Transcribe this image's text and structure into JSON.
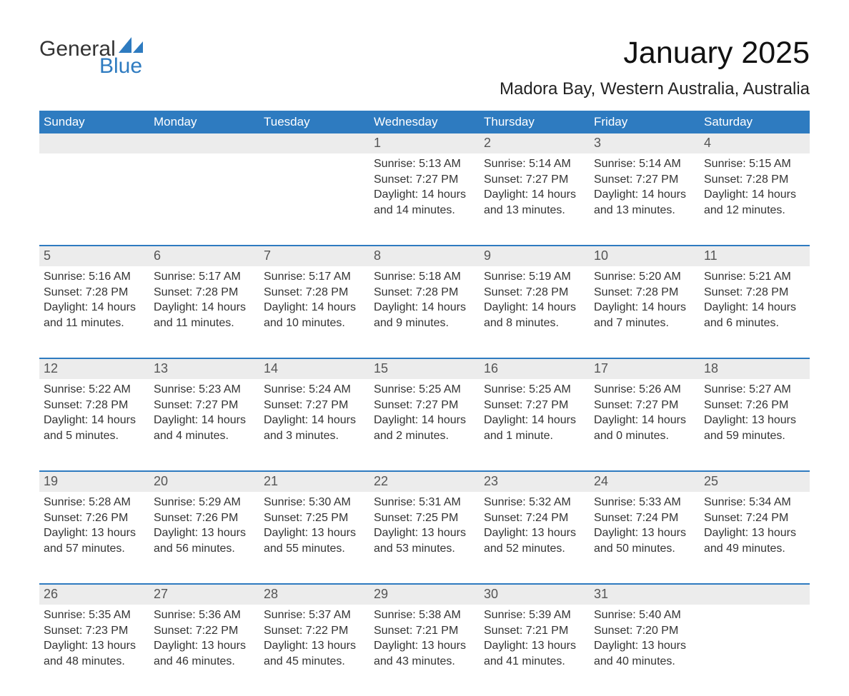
{
  "logo": {
    "word1": "General",
    "word2": "Blue",
    "sail_color": "#2e7bc0",
    "text_color": "#333333"
  },
  "title": "January 2025",
  "location": "Madora Bay, Western Australia, Australia",
  "calendar": {
    "header_bg": "#2e7bc0",
    "header_text_color": "#ffffff",
    "week_divider_color": "#2e7bc0",
    "daynum_bg": "#ececec",
    "columns": [
      "Sunday",
      "Monday",
      "Tuesday",
      "Wednesday",
      "Thursday",
      "Friday",
      "Saturday"
    ],
    "weeks": [
      [
        null,
        null,
        null,
        {
          "day": "1",
          "sunrise": "5:13 AM",
          "sunset": "7:27 PM",
          "daylight": "14 hours and 14 minutes."
        },
        {
          "day": "2",
          "sunrise": "5:14 AM",
          "sunset": "7:27 PM",
          "daylight": "14 hours and 13 minutes."
        },
        {
          "day": "3",
          "sunrise": "5:14 AM",
          "sunset": "7:27 PM",
          "daylight": "14 hours and 13 minutes."
        },
        {
          "day": "4",
          "sunrise": "5:15 AM",
          "sunset": "7:28 PM",
          "daylight": "14 hours and 12 minutes."
        }
      ],
      [
        {
          "day": "5",
          "sunrise": "5:16 AM",
          "sunset": "7:28 PM",
          "daylight": "14 hours and 11 minutes."
        },
        {
          "day": "6",
          "sunrise": "5:17 AM",
          "sunset": "7:28 PM",
          "daylight": "14 hours and 11 minutes."
        },
        {
          "day": "7",
          "sunrise": "5:17 AM",
          "sunset": "7:28 PM",
          "daylight": "14 hours and 10 minutes."
        },
        {
          "day": "8",
          "sunrise": "5:18 AM",
          "sunset": "7:28 PM",
          "daylight": "14 hours and 9 minutes."
        },
        {
          "day": "9",
          "sunrise": "5:19 AM",
          "sunset": "7:28 PM",
          "daylight": "14 hours and 8 minutes."
        },
        {
          "day": "10",
          "sunrise": "5:20 AM",
          "sunset": "7:28 PM",
          "daylight": "14 hours and 7 minutes."
        },
        {
          "day": "11",
          "sunrise": "5:21 AM",
          "sunset": "7:28 PM",
          "daylight": "14 hours and 6 minutes."
        }
      ],
      [
        {
          "day": "12",
          "sunrise": "5:22 AM",
          "sunset": "7:28 PM",
          "daylight": "14 hours and 5 minutes."
        },
        {
          "day": "13",
          "sunrise": "5:23 AM",
          "sunset": "7:27 PM",
          "daylight": "14 hours and 4 minutes."
        },
        {
          "day": "14",
          "sunrise": "5:24 AM",
          "sunset": "7:27 PM",
          "daylight": "14 hours and 3 minutes."
        },
        {
          "day": "15",
          "sunrise": "5:25 AM",
          "sunset": "7:27 PM",
          "daylight": "14 hours and 2 minutes."
        },
        {
          "day": "16",
          "sunrise": "5:25 AM",
          "sunset": "7:27 PM",
          "daylight": "14 hours and 1 minute."
        },
        {
          "day": "17",
          "sunrise": "5:26 AM",
          "sunset": "7:27 PM",
          "daylight": "14 hours and 0 minutes."
        },
        {
          "day": "18",
          "sunrise": "5:27 AM",
          "sunset": "7:26 PM",
          "daylight": "13 hours and 59 minutes."
        }
      ],
      [
        {
          "day": "19",
          "sunrise": "5:28 AM",
          "sunset": "7:26 PM",
          "daylight": "13 hours and 57 minutes."
        },
        {
          "day": "20",
          "sunrise": "5:29 AM",
          "sunset": "7:26 PM",
          "daylight": "13 hours and 56 minutes."
        },
        {
          "day": "21",
          "sunrise": "5:30 AM",
          "sunset": "7:25 PM",
          "daylight": "13 hours and 55 minutes."
        },
        {
          "day": "22",
          "sunrise": "5:31 AM",
          "sunset": "7:25 PM",
          "daylight": "13 hours and 53 minutes."
        },
        {
          "day": "23",
          "sunrise": "5:32 AM",
          "sunset": "7:24 PM",
          "daylight": "13 hours and 52 minutes."
        },
        {
          "day": "24",
          "sunrise": "5:33 AM",
          "sunset": "7:24 PM",
          "daylight": "13 hours and 50 minutes."
        },
        {
          "day": "25",
          "sunrise": "5:34 AM",
          "sunset": "7:24 PM",
          "daylight": "13 hours and 49 minutes."
        }
      ],
      [
        {
          "day": "26",
          "sunrise": "5:35 AM",
          "sunset": "7:23 PM",
          "daylight": "13 hours and 48 minutes."
        },
        {
          "day": "27",
          "sunrise": "5:36 AM",
          "sunset": "7:22 PM",
          "daylight": "13 hours and 46 minutes."
        },
        {
          "day": "28",
          "sunrise": "5:37 AM",
          "sunset": "7:22 PM",
          "daylight": "13 hours and 45 minutes."
        },
        {
          "day": "29",
          "sunrise": "5:38 AM",
          "sunset": "7:21 PM",
          "daylight": "13 hours and 43 minutes."
        },
        {
          "day": "30",
          "sunrise": "5:39 AM",
          "sunset": "7:21 PM",
          "daylight": "13 hours and 41 minutes."
        },
        {
          "day": "31",
          "sunrise": "5:40 AM",
          "sunset": "7:20 PM",
          "daylight": "13 hours and 40 minutes."
        },
        null
      ]
    ],
    "labels": {
      "sunrise": "Sunrise:",
      "sunset": "Sunset:",
      "daylight": "Daylight:"
    }
  }
}
